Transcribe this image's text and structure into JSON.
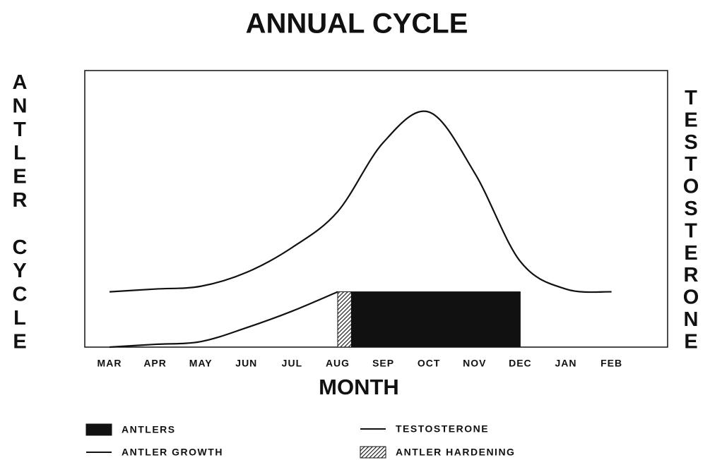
{
  "chart_data": {
    "type": "line",
    "title": "ANNUAL CYCLE",
    "x_label": "MONTH",
    "y_label": "ANTLER CYCLE",
    "y2_label": "TESTOSTERONE",
    "categories": [
      "MAR",
      "APR",
      "MAY",
      "JUN",
      "JUL",
      "AUG",
      "SEP",
      "OCT",
      "NOV",
      "DEC",
      "JAN",
      "FEB"
    ],
    "ylim": [
      0,
      100
    ],
    "series": [
      {
        "name": "TESTOSTERONE",
        "color": "#111111",
        "values": [
          20,
          21,
          22,
          27,
          36,
          49,
          74,
          85,
          63,
          31,
          21,
          20
        ]
      },
      {
        "name": "ANTLER GROWTH",
        "color": "#111111",
        "values": [
          0,
          1,
          2,
          7,
          13,
          20,
          null,
          null,
          null,
          null,
          null,
          null
        ]
      }
    ],
    "spans": [
      {
        "name": "ANTLERS",
        "color": "#111111",
        "from": 5.3,
        "to": 9,
        "value": 20
      },
      {
        "name": "ANTLER HARDENING",
        "color": "#111111",
        "from": 5,
        "to": 5.3,
        "value": 20
      }
    ]
  }
}
